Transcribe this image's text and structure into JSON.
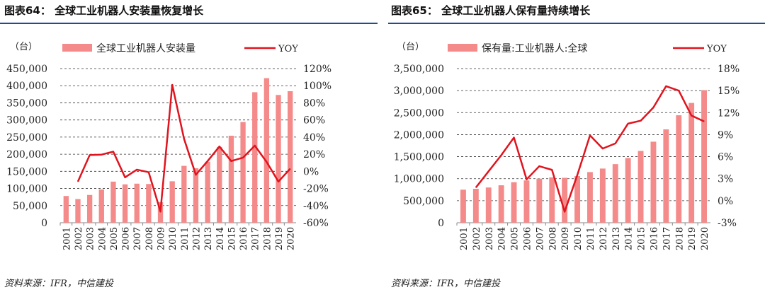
{
  "figures": [
    {
      "title": "图表64： 全球工业机器人安装量恢复增长",
      "source": "资料来源：IFR，中信建投"
    },
    {
      "title": "图表65： 全球工业机器人保有量持续增长",
      "source": "资料来源：IFR，中信建投"
    }
  ],
  "colors": {
    "bar": "#f48a8a",
    "line": "#e0141e",
    "rule": "#1f4e8c"
  },
  "chart_data": [
    {
      "type": "bar+line",
      "unit_label": "（台）",
      "categories": [
        "2001",
        "2002",
        "2003",
        "2004",
        "2005",
        "2006",
        "2007",
        "2008",
        "2009",
        "2010",
        "2011",
        "2012",
        "2013",
        "2014",
        "2015",
        "2016",
        "2017",
        "2018",
        "2019",
        "2020"
      ],
      "series": [
        {
          "name": "全球工业机器人安装量",
          "type": "bar",
          "axis": "left",
          "values": [
            78000,
            69000,
            81000,
            97000,
            120000,
            112000,
            114000,
            113000,
            60000,
            121000,
            166000,
            159000,
            178000,
            221000,
            254000,
            294000,
            381000,
            422000,
            373000,
            384000
          ]
        },
        {
          "name": "YOY",
          "type": "line",
          "axis": "right",
          "values": [
            null,
            -12,
            19,
            19.5,
            23,
            -7,
            2,
            -1,
            -47,
            101,
            38,
            -4,
            12,
            29,
            12,
            16,
            30,
            11,
            -12,
            3
          ]
        }
      ],
      "left_ticks": [
        "0",
        "50,000",
        "100,000",
        "150,000",
        "200,000",
        "250,000",
        "300,000",
        "350,000",
        "400,000",
        "450,000"
      ],
      "right_ticks": [
        "-60%",
        "-40%",
        "-20%",
        "0%",
        "20%",
        "40%",
        "60%",
        "80%",
        "100%",
        "120%"
      ],
      "ylim_left": [
        0,
        450000
      ],
      "ylim_right": [
        -60,
        120
      ],
      "grid": "dashed horizontal",
      "legend": "top"
    },
    {
      "type": "bar+line",
      "unit_label": "（台）",
      "categories": [
        "2001",
        "2002",
        "2003",
        "2004",
        "2005",
        "2006",
        "2007",
        "2008",
        "2009",
        "2010",
        "2011",
        "2012",
        "2013",
        "2014",
        "2015",
        "2016",
        "2017",
        "2018",
        "2019",
        "2020"
      ],
      "series": [
        {
          "name": "保有量:工业机器人:全球",
          "type": "bar",
          "axis": "left",
          "values": [
            750000,
            770000,
            800000,
            850000,
            920000,
            960000,
            1000000,
            1030000,
            1020000,
            1060000,
            1150000,
            1230000,
            1330000,
            1470000,
            1630000,
            1840000,
            2120000,
            2440000,
            2720000,
            3010000
          ]
        },
        {
          "name": "YOY",
          "type": "line",
          "axis": "right",
          "values": [
            null,
            1.8,
            4,
            6.2,
            8.6,
            2.9,
            4.7,
            4.2,
            -1.5,
            3.5,
            8.9,
            7.1,
            7.8,
            10.5,
            10.9,
            12.7,
            15.6,
            15.0,
            11.6,
            10.8
          ]
        }
      ],
      "left_ticks": [
        "0",
        "500,000",
        "1,000,000",
        "1,500,000",
        "2,000,000",
        "2,500,000",
        "3,000,000",
        "3,500,000"
      ],
      "right_ticks": [
        "-3%",
        "0%",
        "3%",
        "6%",
        "9%",
        "12%",
        "15%",
        "18%"
      ],
      "ylim_left": [
        0,
        3500000
      ],
      "ylim_right": [
        -3,
        18
      ],
      "grid": "dashed horizontal",
      "legend": "top"
    }
  ]
}
